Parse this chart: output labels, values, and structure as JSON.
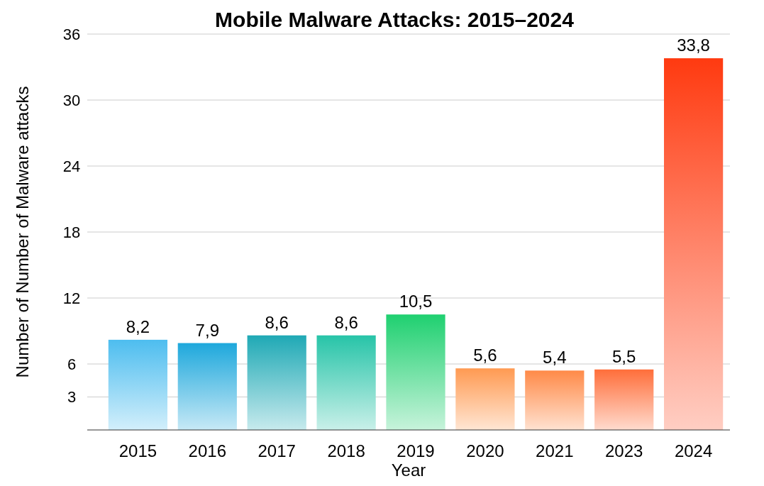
{
  "chart_data": {
    "type": "bar",
    "title": "Mobile Malware Attacks: 2015–2024",
    "xlabel": "Year",
    "ylabel": "Number of Number of Malware attacks",
    "categories": [
      "2015",
      "2016",
      "2017",
      "2018",
      "2019",
      "2020",
      "2021",
      "2023",
      "2024"
    ],
    "values": [
      8.2,
      7.9,
      8.6,
      8.6,
      10.5,
      5.6,
      5.4,
      5.5,
      33.8
    ],
    "value_labels": [
      "8,2",
      "7,9",
      "8,6",
      "8,6",
      "10,5",
      "5,6",
      "5,4",
      "5,5",
      "33,8"
    ],
    "colors": [
      "#4dbdef",
      "#1ea8dc",
      "#1fa9b5",
      "#27c4a8",
      "#1fd070",
      "#ff9a52",
      "#ff8a48",
      "#ff6e3a",
      "#ff3a10"
    ],
    "ylim": [
      0,
      36
    ],
    "yticks": [
      3,
      6,
      12,
      18,
      24,
      30,
      36
    ],
    "grid": "y"
  }
}
